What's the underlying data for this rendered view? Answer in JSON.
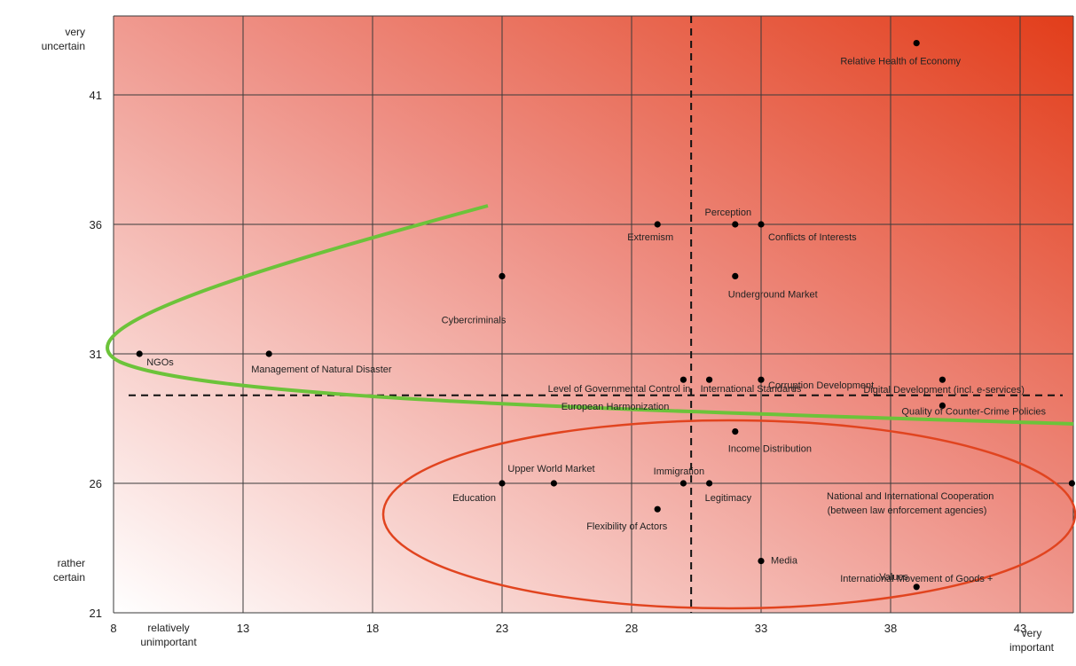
{
  "chart_data": {
    "type": "scatter",
    "title": "",
    "xlabel": "",
    "ylabel": "",
    "xlim": [
      8,
      46
    ],
    "ylim": [
      21,
      43.5
    ],
    "x_ticks": [
      "8",
      "13",
      "18",
      "23",
      "28",
      "33",
      "38",
      "43"
    ],
    "y_ticks": [
      "21",
      "26",
      "31",
      "36",
      "41"
    ],
    "x_low_label": [
      "relatively",
      "unimportant"
    ],
    "x_high_label": [
      "very",
      "important"
    ],
    "y_high_label": [
      "very",
      "uncertain"
    ],
    "y_low_label": [
      "rather",
      "certain"
    ],
    "grid": true,
    "threshold_x": 30.3,
    "threshold_y": 29.4,
    "points": [
      {
        "label": "Relative Health of Economy",
        "x": 39,
        "y": 43
      },
      {
        "label": "Perception",
        "x": 32,
        "y": 36
      },
      {
        "label": "Extremism",
        "x": 29,
        "y": 36
      },
      {
        "label": "Conflicts of Interests",
        "x": 33,
        "y": 36
      },
      {
        "label": "Cybercriminals",
        "x": 23,
        "y": 34
      },
      {
        "label": "Underground Market",
        "x": 32,
        "y": 34
      },
      {
        "label": "NGOs",
        "x": 9,
        "y": 31
      },
      {
        "label": "Management of Natural Disaster",
        "x": 14,
        "y": 31
      },
      {
        "label": "Level of Governmental Control in",
        "x": 30,
        "y": 30
      },
      {
        "label": "European Harmonization",
        "x": 30,
        "y": 30
      },
      {
        "label": "International Standards",
        "x": 31,
        "y": 30
      },
      {
        "label": "Corruption Development",
        "x": 33,
        "y": 30
      },
      {
        "label": "Digital Development (incl. e-services)",
        "x": 40,
        "y": 30
      },
      {
        "label": "Quality of Counter-Crime Policies",
        "x": 40,
        "y": 29
      },
      {
        "label": "Income Distribution",
        "x": 32,
        "y": 28
      },
      {
        "label": "Upper World Market",
        "x": 25,
        "y": 26
      },
      {
        "label": "Education",
        "x": 23,
        "y": 26
      },
      {
        "label": "Immigration",
        "x": 30,
        "y": 26
      },
      {
        "label": "Legitimacy",
        "x": 31,
        "y": 26
      },
      {
        "label": "National and International Cooperation",
        "x": 45,
        "y": 26
      },
      {
        "label": "(between law enforcement agencies)",
        "x": 45,
        "y": 26
      },
      {
        "label": "Flexibility of Actors",
        "x": 29,
        "y": 25
      },
      {
        "label": "Media",
        "x": 33,
        "y": 23
      },
      {
        "label": "International Movement of Goods +",
        "x": 39,
        "y": 22
      },
      {
        "label": "Values",
        "x": 39,
        "y": 22
      }
    ],
    "colors": {
      "gradient_start": "#ffffff",
      "gradient_mid": "#ee8f84",
      "gradient_end": "#e23d1a",
      "green_curve": "#6cc33a",
      "red_ellipse": "#e1441f",
      "point": "#000000",
      "grid": "#3a3a3a"
    }
  }
}
